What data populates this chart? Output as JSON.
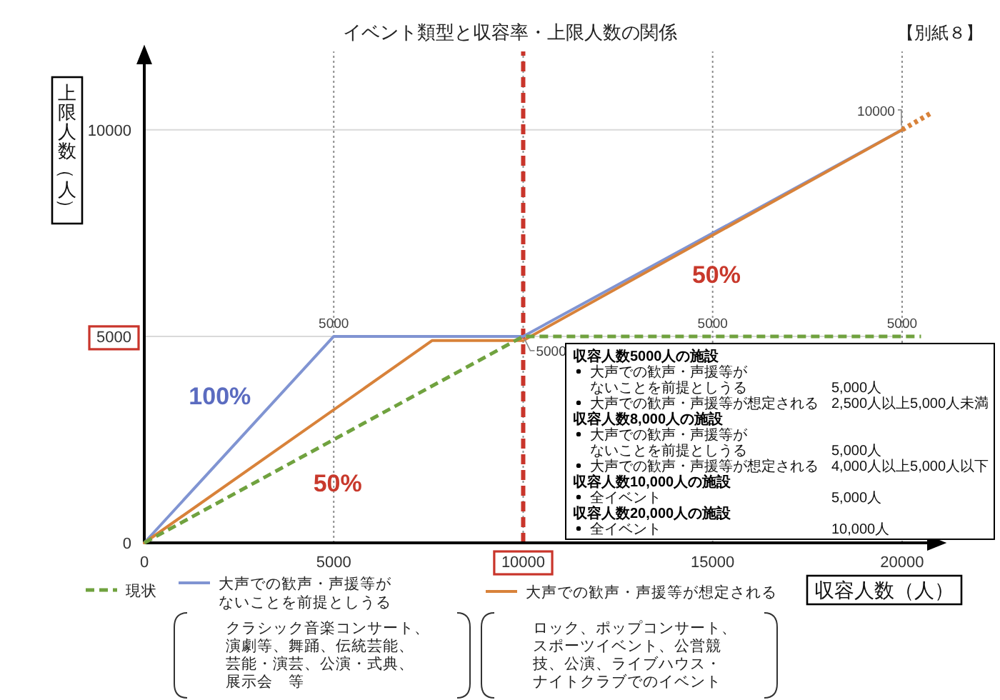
{
  "chart_data": {
    "type": "line",
    "title": "イベント類型と収容率・上限人数の関係",
    "xlabel": "収容人数（人）",
    "ylabel": "上限人数（人）",
    "xlim": [
      0,
      21000
    ],
    "ylim": [
      0,
      11900
    ],
    "xticks": [
      0,
      5000,
      10000,
      15000,
      20000
    ],
    "yticks": [
      0,
      5000,
      10000
    ],
    "grid": true,
    "legend": "bottom",
    "series": [
      {
        "name": "現状",
        "color": "#70a23f",
        "line_style": "dashed",
        "x": [
          0,
          10000,
          15000,
          20000,
          20500
        ],
        "values": [
          0,
          5000,
          5000,
          5000,
          5000
        ],
        "value_labels": [
          null,
          "5000",
          "5000",
          "5000",
          null
        ]
      },
      {
        "name": "大声での歓声・声援等がないことを前提としうる",
        "color": "#8094d2",
        "line_style": "solid",
        "x": [
          0,
          5000,
          10000,
          20000
        ],
        "values": [
          0,
          5000,
          5000,
          10000
        ],
        "value_labels": [
          null,
          "5000",
          null,
          "10000"
        ]
      },
      {
        "name": "大声での歓声・声援等が想定される",
        "color": "#d8823a",
        "line_style": "solid",
        "x": [
          0,
          7600,
          10000,
          20000
        ],
        "values": [
          0,
          4900,
          4900,
          10000
        ]
      },
      {
        "color": "#d8823a",
        "line_style": "dotted",
        "x": [
          20000,
          20750
        ],
        "values": [
          10000,
          10400
        ]
      }
    ],
    "ref_lines": [
      {
        "axis": "x",
        "value": 10000,
        "color": "#c9352b",
        "line_style": "dashed"
      }
    ],
    "annotations": [
      "【別紙８】",
      "100%",
      "50%",
      "50%",
      "クラシック音楽コンサート、演劇等、舞踊、伝統芸能、芸能・演芸、公演・式典、展示会　等",
      "ロック、ポップコンサート、スポーツイベント、公営競技、公演、ライブハウス・ナイトクラブでのイベント",
      "収容人数5000人の施設",
      "大声での歓声・声援等がないことを前提としうる",
      "5,000人",
      "大声での歓声・声援等が想定される",
      "2,500人以上5,000人未満",
      "収容人数8,000人の施設",
      "大声での歓声・声援等がないことを前提としうる",
      "5,000人",
      "大声での歓声・声援等が想定される",
      "4,000人以上5,000人以下",
      "収容人数10,000人の施設",
      "全イベント",
      "5,000人",
      "収容人数20,000人の施設",
      "全イベント",
      "10,000人"
    ]
  }
}
